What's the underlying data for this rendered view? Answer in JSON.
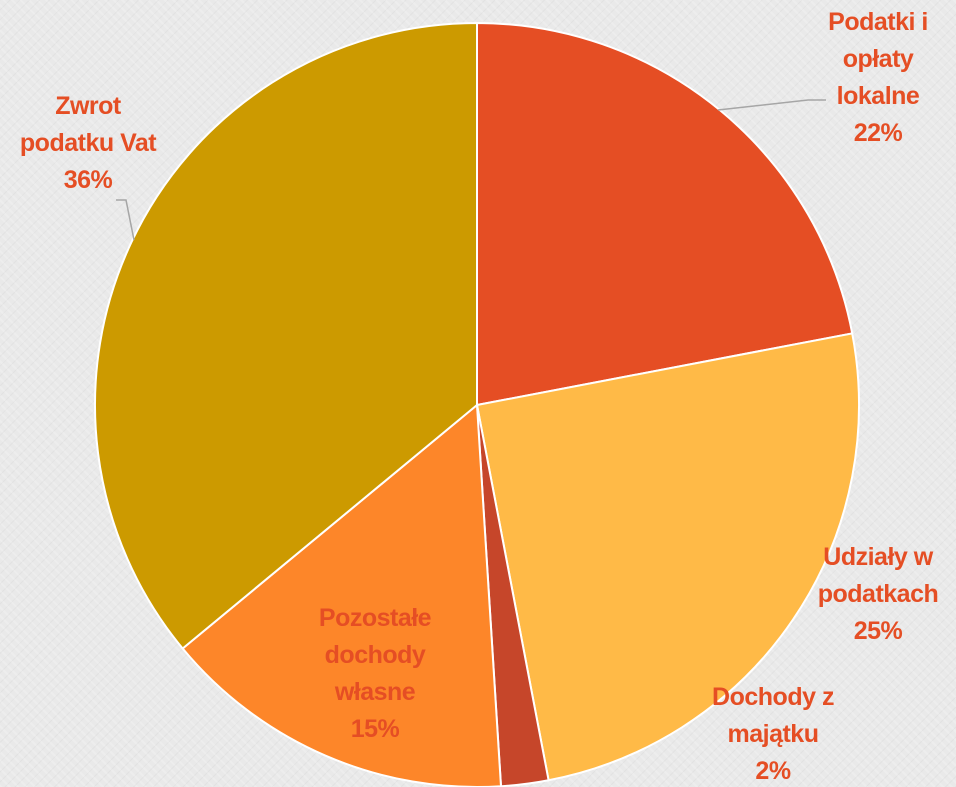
{
  "chart_data": {
    "type": "pie",
    "title": "",
    "start_angle_deg": 0,
    "direction": "clockwise",
    "slices": [
      {
        "name": "Podatki i opłaty lokalne",
        "value": 22,
        "label_lines": [
          "Podatki i",
          "opłaty",
          "lokalne",
          "22%"
        ],
        "color": "#e54e24",
        "label_color": "#e54e24"
      },
      {
        "name": "Udziały w podatkach",
        "value": 25,
        "label_lines": [
          "Udziały w",
          "podatkach",
          "25%"
        ],
        "color": "#ffba47",
        "label_color": "#e54e24"
      },
      {
        "name": "Dochody z majątku",
        "value": 2,
        "label_lines": [
          "Dochody z",
          "majątku",
          "2%"
        ],
        "color": "#c6462a",
        "label_color": "#e54e24"
      },
      {
        "name": "Pozostałe dochody własne",
        "value": 15,
        "label_lines": [
          "Pozostałe",
          "dochody",
          "własne",
          "15%"
        ],
        "color": "#fd8629",
        "label_color": "#e54e24"
      },
      {
        "name": "Zwrot podatku Vat",
        "value": 36,
        "label_lines": [
          "Zwrot",
          "podatku Vat",
          "36%"
        ],
        "color": "#cc9a00",
        "label_color": "#e54e24"
      }
    ]
  }
}
